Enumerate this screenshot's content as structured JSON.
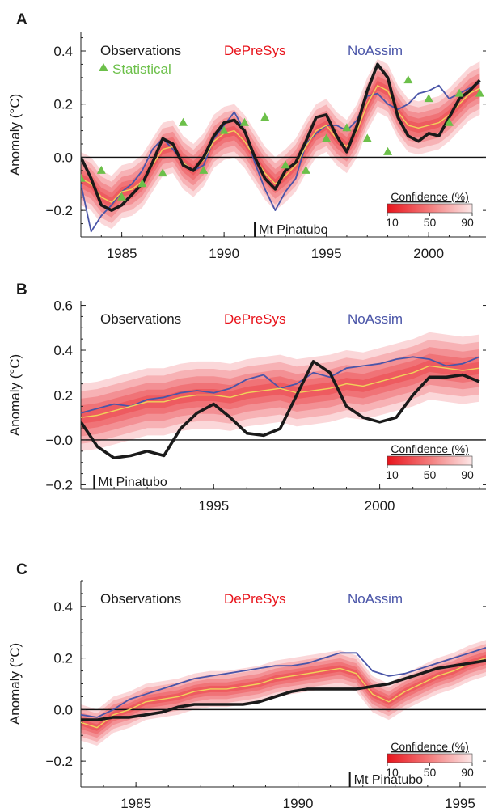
{
  "figure": {
    "confidence_label": "Confidence (%)",
    "confidence_ticks": [
      "10",
      "50",
      "90"
    ],
    "event_label": "Mt Pinatubo",
    "legend": {
      "observations": "Observations",
      "depresys": "DePreSys",
      "noassim": "NoAssim",
      "statistical": "Statistical"
    },
    "colors": {
      "observations": "#1a1a1a",
      "depresys_line": "#f0d25a",
      "depresys_band": "#e8141c",
      "depresys_text": "#e8141c",
      "noassim": "#4a55a8",
      "statistical": "#6cc04a"
    }
  },
  "chart_data": [
    {
      "type": "line",
      "panel_label": "A",
      "ylabel": "Anomaly (°C)",
      "xlim": [
        1983,
        2002.8
      ],
      "ylim": [
        -0.3,
        0.47
      ],
      "xticks": [
        1985,
        1990,
        1995,
        2000
      ],
      "xtick_labels": [
        "1985",
        "1990",
        "1995",
        "2000"
      ],
      "yticks": [
        -0.2,
        0.0,
        0.2,
        0.4
      ],
      "ytick_labels": [
        "−0.2",
        "0.0",
        "0.2",
        "0.4"
      ],
      "event_x": 1991.5,
      "x": [
        1983.0,
        1983.5,
        1984.0,
        1984.5,
        1985.0,
        1985.5,
        1986.0,
        1986.5,
        1987.0,
        1987.5,
        1988.0,
        1988.5,
        1989.0,
        1989.5,
        1990.0,
        1990.5,
        1991.0,
        1991.5,
        1992.0,
        1992.5,
        1993.0,
        1993.5,
        1994.0,
        1994.5,
        1995.0,
        1995.5,
        1996.0,
        1996.5,
        1997.0,
        1997.5,
        1998.0,
        1998.5,
        1999.0,
        1999.5,
        2000.0,
        2000.5,
        2001.0,
        2001.5,
        2002.0,
        2002.5
      ],
      "series": [
        {
          "name": "Observations",
          "values": [
            0.0,
            -0.08,
            -0.18,
            -0.2,
            -0.18,
            -0.14,
            -0.1,
            -0.02,
            0.07,
            0.05,
            -0.03,
            -0.05,
            0.0,
            0.08,
            0.13,
            0.14,
            0.1,
            0.0,
            -0.08,
            -0.12,
            -0.05,
            -0.02,
            0.06,
            0.15,
            0.16,
            0.08,
            0.02,
            0.12,
            0.25,
            0.35,
            0.3,
            0.15,
            0.08,
            0.06,
            0.09,
            0.08,
            0.15,
            0.22,
            0.25,
            0.29
          ]
        },
        {
          "name": "DePreSys",
          "values": [
            -0.08,
            -0.1,
            -0.15,
            -0.17,
            -0.13,
            -0.12,
            -0.09,
            -0.03,
            0.03,
            0.04,
            -0.02,
            -0.05,
            -0.01,
            0.06,
            0.09,
            0.1,
            0.06,
            0.0,
            -0.06,
            -0.1,
            -0.07,
            -0.03,
            0.04,
            0.1,
            0.12,
            0.07,
            0.04,
            0.1,
            0.2,
            0.27,
            0.25,
            0.17,
            0.12,
            0.11,
            0.12,
            0.13,
            0.16,
            0.2,
            0.24,
            0.26
          ]
        },
        {
          "name": "NoAssim",
          "values": [
            -0.1,
            -0.28,
            -0.22,
            -0.18,
            -0.13,
            -0.1,
            -0.05,
            0.03,
            0.07,
            0.03,
            -0.02,
            -0.05,
            -0.03,
            0.07,
            0.12,
            0.17,
            0.1,
            -0.02,
            -0.12,
            -0.2,
            -0.13,
            -0.08,
            0.05,
            0.09,
            0.12,
            0.12,
            0.1,
            0.14,
            0.23,
            0.24,
            0.2,
            0.18,
            0.2,
            0.24,
            0.25,
            0.27,
            0.22,
            0.24,
            0.26,
            0.28
          ]
        },
        {
          "name": "Statistical",
          "points": [
            [
              1983.0,
              -0.08
            ],
            [
              1984.0,
              -0.05
            ],
            [
              1985.0,
              -0.15
            ],
            [
              1986.0,
              -0.1
            ],
            [
              1987.0,
              -0.06
            ],
            [
              1988.0,
              0.13
            ],
            [
              1989.0,
              -0.05
            ],
            [
              1990.0,
              0.1
            ],
            [
              1991.0,
              0.13
            ],
            [
              1992.0,
              0.15
            ],
            [
              1993.0,
              -0.03
            ],
            [
              1994.0,
              -0.05
            ],
            [
              1995.0,
              0.07
            ],
            [
              1996.0,
              0.11
            ],
            [
              1997.0,
              0.07
            ],
            [
              1998.0,
              0.02
            ],
            [
              1999.0,
              0.29
            ],
            [
              2000.0,
              0.22
            ],
            [
              2001.0,
              0.13
            ],
            [
              2001.5,
              0.24
            ],
            [
              2002.5,
              0.24
            ]
          ]
        }
      ],
      "band_halfwidth": 0.1
    },
    {
      "type": "line",
      "panel_label": "B",
      "ylabel": "Anomaly (°C)",
      "xlim": [
        1991.0,
        2003.2
      ],
      "ylim": [
        -0.22,
        0.62
      ],
      "xticks": [
        1995,
        2000
      ],
      "xtick_labels": [
        "1995",
        "2000"
      ],
      "yticks": [
        -0.2,
        0.0,
        0.2,
        0.4,
        0.6
      ],
      "ytick_labels": [
        "−0.2",
        "−0.0",
        "0.2",
        "0.4",
        "0.6"
      ],
      "event_x": 1991.4,
      "x": [
        1991.0,
        1991.5,
        1992.0,
        1992.5,
        1993.0,
        1993.5,
        1994.0,
        1994.5,
        1995.0,
        1995.5,
        1996.0,
        1996.5,
        1997.0,
        1997.5,
        1998.0,
        1998.5,
        1999.0,
        1999.5,
        2000.0,
        2000.5,
        2001.0,
        2001.5,
        2002.0,
        2002.5,
        2003.0
      ],
      "series": [
        {
          "name": "Observations",
          "values": [
            0.08,
            -0.03,
            -0.08,
            -0.07,
            -0.05,
            -0.07,
            0.05,
            0.12,
            0.16,
            0.1,
            0.03,
            0.02,
            0.05,
            0.2,
            0.35,
            0.3,
            0.15,
            0.1,
            0.08,
            0.1,
            0.2,
            0.28,
            0.28,
            0.29,
            0.26
          ]
        },
        {
          "name": "DePreSys",
          "values": [
            0.1,
            0.11,
            0.13,
            0.15,
            0.17,
            0.17,
            0.19,
            0.2,
            0.2,
            0.19,
            0.21,
            0.22,
            0.23,
            0.21,
            0.22,
            0.23,
            0.25,
            0.24,
            0.26,
            0.28,
            0.3,
            0.33,
            0.32,
            0.31,
            0.32
          ]
        },
        {
          "name": "NoAssim",
          "values": [
            0.12,
            0.14,
            0.16,
            0.15,
            0.18,
            0.19,
            0.21,
            0.22,
            0.21,
            0.23,
            0.27,
            0.29,
            0.23,
            0.25,
            0.3,
            0.28,
            0.32,
            0.33,
            0.34,
            0.36,
            0.37,
            0.36,
            0.33,
            0.34,
            0.37
          ]
        }
      ],
      "band_halfwidth": 0.15
    },
    {
      "type": "line",
      "panel_label": "C",
      "ylabel": "Anomaly (°C)",
      "xlim": [
        1983.3,
        1995.8
      ],
      "ylim": [
        -0.3,
        0.5
      ],
      "xticks": [
        1985,
        1990,
        1995
      ],
      "xtick_labels": [
        "1985",
        "1990",
        "1995"
      ],
      "yticks": [
        -0.2,
        0.0,
        0.2,
        0.4
      ],
      "ytick_labels": [
        "−0.2",
        "0.0",
        "0.2",
        "0.4"
      ],
      "event_x": 1991.6,
      "x": [
        1983.3,
        1983.8,
        1984.3,
        1984.8,
        1985.3,
        1985.8,
        1986.3,
        1986.8,
        1987.3,
        1987.8,
        1988.3,
        1988.8,
        1989.3,
        1989.8,
        1990.3,
        1990.8,
        1991.3,
        1991.8,
        1992.3,
        1992.8,
        1993.3,
        1993.8,
        1994.3,
        1994.8,
        1995.3,
        1995.8
      ],
      "series": [
        {
          "name": "Observations",
          "values": [
            -0.04,
            -0.04,
            -0.03,
            -0.03,
            -0.02,
            -0.01,
            0.01,
            0.02,
            0.02,
            0.02,
            0.02,
            0.03,
            0.05,
            0.07,
            0.08,
            0.08,
            0.08,
            0.08,
            0.09,
            0.1,
            0.12,
            0.14,
            0.16,
            0.17,
            0.18,
            0.19
          ]
        },
        {
          "name": "DePreSys",
          "values": [
            -0.05,
            -0.07,
            -0.02,
            0.0,
            0.03,
            0.04,
            0.05,
            0.07,
            0.08,
            0.08,
            0.09,
            0.1,
            0.12,
            0.13,
            0.14,
            0.15,
            0.16,
            0.14,
            0.06,
            0.03,
            0.07,
            0.1,
            0.13,
            0.15,
            0.18,
            0.2
          ]
        },
        {
          "name": "NoAssim",
          "values": [
            -0.02,
            -0.03,
            0.0,
            0.04,
            0.06,
            0.08,
            0.1,
            0.12,
            0.13,
            0.14,
            0.15,
            0.16,
            0.17,
            0.17,
            0.18,
            0.2,
            0.22,
            0.22,
            0.15,
            0.13,
            0.14,
            0.16,
            0.18,
            0.2,
            0.22,
            0.24
          ]
        }
      ],
      "band_halfwidth": 0.07
    }
  ]
}
